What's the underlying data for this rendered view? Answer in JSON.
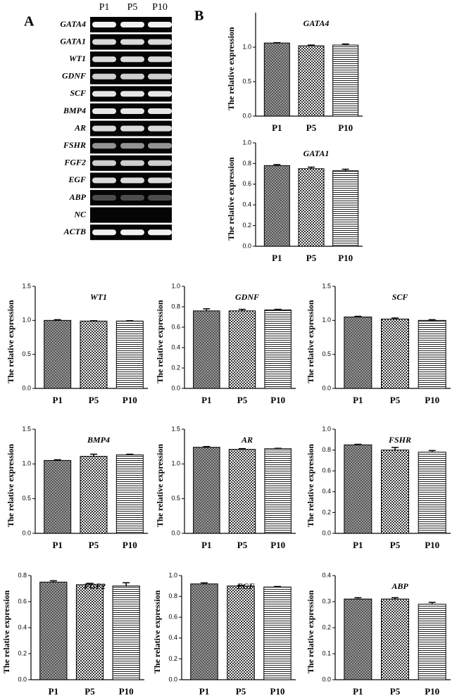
{
  "panel_labels": [
    "A",
    "B"
  ],
  "gel": {
    "lanes": [
      "P1",
      "P5",
      "P10"
    ],
    "genes": [
      "GATA4",
      "GATA1",
      "WT1",
      "GDNF",
      "SCF",
      "BMP4",
      "AR",
      "FSHR",
      "FGF2",
      "EGF",
      "ABP",
      "NC",
      "ACTB"
    ]
  },
  "chart_data": [
    {
      "type": "bar",
      "title": "GATA4",
      "ylabel": "The relative expression",
      "categories": [
        "P1",
        "P5",
        "P10"
      ],
      "values": [
        1.06,
        1.02,
        1.03
      ],
      "errors": [
        0.005,
        0.01,
        0.015
      ],
      "ylim": [
        0,
        1.5
      ],
      "yticks": [
        {
          "value": 0,
          "label": "0.0"
        },
        0.5,
        {
          "value": 1,
          "label": "1.0"
        }
      ]
    },
    {
      "type": "bar",
      "title": "GATA1",
      "ylabel": "The relative expression",
      "categories": [
        "P1",
        "P5",
        "P10"
      ],
      "values": [
        0.78,
        0.75,
        0.73
      ],
      "errors": [
        0.01,
        0.015,
        0.015
      ],
      "ylim": [
        0,
        1.0
      ],
      "yticks": [
        {
          "value": 0,
          "label": "0.0"
        },
        0.2,
        0.4,
        0.6,
        0.8,
        {
          "value": 1,
          "label": "1.0"
        }
      ]
    },
    {
      "type": "bar",
      "title": "WT1",
      "ylabel": "The relative expression",
      "categories": [
        "P1",
        "P5",
        "P10"
      ],
      "values": [
        1.0,
        0.99,
        0.99
      ],
      "errors": [
        0.01,
        0.005,
        0.005
      ],
      "ylim": [
        0,
        1.5
      ],
      "yticks": [
        {
          "value": 0,
          "label": "0.0"
        },
        0.5,
        {
          "value": 1,
          "label": "1.0"
        },
        1.5
      ]
    },
    {
      "type": "bar",
      "title": "GDNF",
      "ylabel": "The relative expression",
      "categories": [
        "P1",
        "P5",
        "P10"
      ],
      "values": [
        0.76,
        0.76,
        0.77
      ],
      "errors": [
        0.02,
        0.015,
        0.005
      ],
      "ylim": [
        0,
        1.0
      ],
      "yticks": [
        {
          "value": 0,
          "label": "0.0"
        },
        0.2,
        0.4,
        0.6,
        0.8,
        {
          "value": 1,
          "label": "1.0"
        }
      ]
    },
    {
      "type": "bar",
      "title": "SCF",
      "ylabel": "The relative expression",
      "categories": [
        "P1",
        "P5",
        "P10"
      ],
      "values": [
        1.05,
        1.02,
        1.0
      ],
      "errors": [
        0.01,
        0.015,
        0.01
      ],
      "ylim": [
        0,
        1.5
      ],
      "yticks": [
        {
          "value": 0,
          "label": "0.0"
        },
        0.5,
        {
          "value": 1,
          "label": "1.0"
        },
        1.5
      ]
    },
    {
      "type": "bar",
      "title": "BMP4",
      "ylabel": "The relative expression",
      "categories": [
        "P1",
        "P5",
        "P10"
      ],
      "values": [
        1.05,
        1.11,
        1.13
      ],
      "errors": [
        0.01,
        0.03,
        0.01
      ],
      "ylim": [
        0,
        1.5
      ],
      "yticks": [
        {
          "value": 0,
          "label": "0.0"
        },
        0.5,
        {
          "value": 1,
          "label": "1.0"
        },
        1.5
      ]
    },
    {
      "type": "bar",
      "title": "AR",
      "ylabel": "The relative expression",
      "categories": [
        "P1",
        "P5",
        "P10"
      ],
      "values": [
        1.24,
        1.21,
        1.22
      ],
      "errors": [
        0.01,
        0.01,
        0.005
      ],
      "ylim": [
        0,
        1.5
      ],
      "yticks": [
        {
          "value": 0,
          "label": "0.0"
        },
        0.5,
        {
          "value": 1,
          "label": "1.0"
        },
        1.5
      ]
    },
    {
      "type": "bar",
      "title": "FSHR",
      "ylabel": "The relative expression",
      "categories": [
        "P1",
        "P5",
        "P10"
      ],
      "values": [
        0.85,
        0.8,
        0.78
      ],
      "errors": [
        0.005,
        0.025,
        0.015
      ],
      "ylim": [
        0,
        1.0
      ],
      "yticks": [
        {
          "value": 0,
          "label": "0.0"
        },
        0.2,
        0.4,
        0.6,
        0.8,
        {
          "value": 1,
          "label": "1.0"
        }
      ]
    },
    {
      "type": "bar",
      "title": "FGF2",
      "ylabel": "The relative expression",
      "categories": [
        "P1",
        "P5",
        "P10"
      ],
      "values": [
        0.75,
        0.73,
        0.72
      ],
      "errors": [
        0.01,
        0.01,
        0.025
      ],
      "ylim": [
        0,
        0.8
      ],
      "yticks": [
        {
          "value": 0,
          "label": "0.0"
        },
        0.2,
        0.4,
        0.6,
        0.8
      ]
    },
    {
      "type": "bar",
      "title": "EGF",
      "ylabel": "The relative expression",
      "categories": [
        "P1",
        "P5",
        "P10"
      ],
      "values": [
        0.92,
        0.9,
        0.89
      ],
      "errors": [
        0.01,
        0.005,
        0.005
      ],
      "ylim": [
        0,
        1.0
      ],
      "yticks": [
        {
          "value": 0,
          "label": "0.0"
        },
        0.2,
        0.4,
        0.6,
        0.8,
        {
          "value": 1,
          "label": "1.0"
        }
      ]
    },
    {
      "type": "bar",
      "title": "ABP",
      "ylabel": "The relative expression",
      "categories": [
        "P1",
        "P5",
        "P10"
      ],
      "values": [
        0.31,
        0.31,
        0.29
      ],
      "errors": [
        0.005,
        0.005,
        0.007
      ],
      "ylim": [
        0,
        0.4
      ],
      "yticks": [
        {
          "value": 0,
          "label": "0.0"
        },
        0.1,
        0.2,
        0.3,
        0.4
      ]
    }
  ]
}
